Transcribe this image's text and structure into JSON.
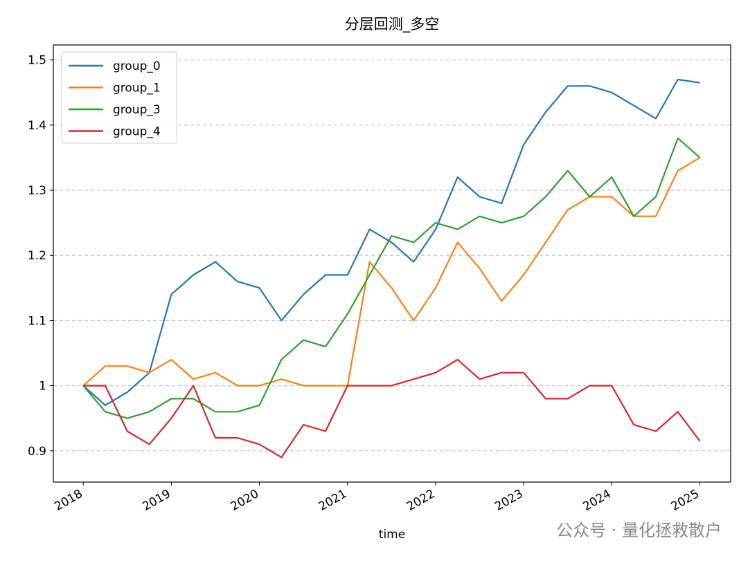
{
  "chart_data": {
    "type": "line",
    "title": "分层回测_多空",
    "x_label": "time",
    "x": [
      2018.0,
      2018.25,
      2018.5,
      2018.75,
      2019.0,
      2019.25,
      2019.5,
      2019.75,
      2020.0,
      2020.25,
      2020.5,
      2020.75,
      2021.0,
      2021.25,
      2021.5,
      2021.75,
      2022.0,
      2022.25,
      2022.5,
      2022.75,
      2023.0,
      2023.25,
      2023.5,
      2023.75,
      2024.0,
      2024.25,
      2024.5,
      2024.75,
      2025.0
    ],
    "series": [
      {
        "name": "group_0",
        "color": "#1f77b4",
        "values": [
          1.0,
          0.97,
          0.99,
          1.02,
          1.14,
          1.17,
          1.19,
          1.16,
          1.15,
          1.1,
          1.14,
          1.17,
          1.17,
          1.24,
          1.22,
          1.19,
          1.24,
          1.32,
          1.29,
          1.28,
          1.37,
          1.42,
          1.46,
          1.46,
          1.45,
          1.43,
          1.41,
          1.47,
          1.465
        ]
      },
      {
        "name": "group_1",
        "color": "#ff7f0e",
        "values": [
          1.0,
          1.03,
          1.03,
          1.02,
          1.04,
          1.01,
          1.02,
          1.0,
          1.0,
          1.01,
          1.0,
          1.0,
          1.0,
          1.19,
          1.15,
          1.1,
          1.15,
          1.22,
          1.18,
          1.13,
          1.17,
          1.22,
          1.27,
          1.29,
          1.29,
          1.26,
          1.26,
          1.33,
          1.35
        ]
      },
      {
        "name": "group_3",
        "color": "#2ca02c",
        "values": [
          1.0,
          0.96,
          0.95,
          0.96,
          0.98,
          0.98,
          0.96,
          0.96,
          0.97,
          1.04,
          1.07,
          1.06,
          1.11,
          1.17,
          1.23,
          1.22,
          1.25,
          1.24,
          1.26,
          1.25,
          1.26,
          1.29,
          1.33,
          1.29,
          1.32,
          1.26,
          1.29,
          1.38,
          1.35
        ]
      },
      {
        "name": "group_4",
        "color": "#d62728",
        "values": [
          1.0,
          1.0,
          0.93,
          0.91,
          0.95,
          1.0,
          0.92,
          0.92,
          0.91,
          0.89,
          0.94,
          0.93,
          1.0,
          1.0,
          1.0,
          1.01,
          1.02,
          1.04,
          1.01,
          1.02,
          1.02,
          0.98,
          0.98,
          1.0,
          1.0,
          0.94,
          0.93,
          0.96,
          0.915
        ]
      }
    ],
    "xlim": [
      2017.66,
      2025.35
    ],
    "xticks": [
      2018,
      2019,
      2020,
      2021,
      2022,
      2023,
      2024,
      2025
    ],
    "ylim": [
      0.852,
      1.523
    ],
    "yticks": [
      0.9,
      1.0,
      1.1,
      1.2,
      1.3,
      1.4,
      1.5
    ],
    "grid": true,
    "legend": "upper-left",
    "watermark": "公众号 · 量化拯救散户"
  }
}
